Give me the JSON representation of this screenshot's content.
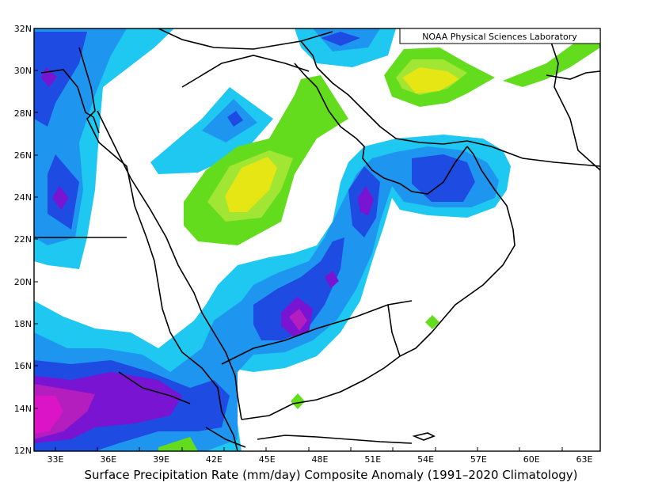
{
  "credit": "NOAA Physical Sciences Laboratory",
  "caption": "Surface Precipitation Rate (mm/day) Composite Anomaly (1991–2020 Climatology)",
  "lat_labels": [
    "32N",
    "30N",
    "28N",
    "26N",
    "24N",
    "22N",
    "20N",
    "18N",
    "16N",
    "14N",
    "12N"
  ],
  "lon_labels": [
    "33E",
    "36E",
    "39E",
    "42E",
    "45E",
    "48E",
    "51E",
    "54E",
    "57E",
    "60E",
    "63E"
  ],
  "colors": {
    "level_1": "#1ec8f0",
    "level_2": "#1e96f0",
    "level_3": "#1e4be1",
    "level_4": "#7814d2",
    "level_5": "#b41ebe",
    "level_6": "#dc14c8",
    "green_1": "#64dc1e",
    "green_2": "#a0e632",
    "green_3": "#e6e614",
    "land_border": "#000000"
  }
}
